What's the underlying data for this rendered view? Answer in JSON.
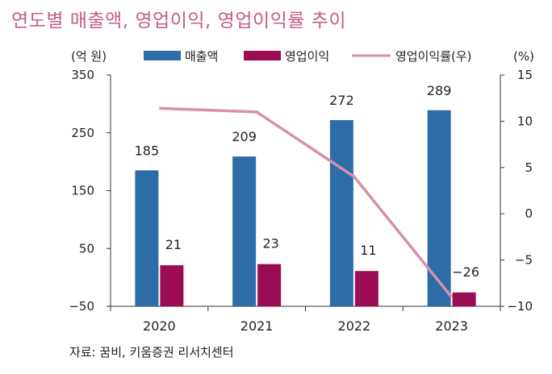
{
  "chart_data": {
    "type": "bar",
    "title": "연도별 매출액, 영업이익, 영업이익률 추이",
    "categories": [
      "2020",
      "2021",
      "2022",
      "2023"
    ],
    "left_axis": {
      "label": "(억 원)",
      "range": [
        -50,
        350
      ],
      "ticks": [
        350,
        250,
        150,
        50,
        -50
      ],
      "tick_labels": [
        "350",
        "250",
        "150",
        "50",
        "−50"
      ]
    },
    "right_axis": {
      "label": "(%)",
      "range": [
        -10,
        15
      ],
      "ticks": [
        15,
        10,
        5,
        0,
        -5,
        -10
      ],
      "tick_labels": [
        "15",
        "10",
        "5",
        "0",
        "−5",
        "−10"
      ]
    },
    "series": [
      {
        "name": "매출액",
        "kind": "bar",
        "axis": "left",
        "color": "#2e6ca8",
        "values": [
          185,
          209,
          272,
          289
        ],
        "labels": [
          "185",
          "209",
          "272",
          "289"
        ]
      },
      {
        "name": "영업이익",
        "kind": "bar",
        "axis": "left",
        "color": "#9b0d52",
        "values": [
          21,
          23,
          11,
          -26
        ],
        "labels": [
          "21",
          "23",
          "11",
          "−26"
        ]
      },
      {
        "name": "영업이익률(우)",
        "kind": "line",
        "axis": "right",
        "color": "#d591a7",
        "values": [
          11.4,
          11.0,
          4.0,
          -9.0
        ]
      }
    ],
    "legend_position": "top"
  },
  "source": "자료: 꿈비, 키움증권 리서치센터"
}
